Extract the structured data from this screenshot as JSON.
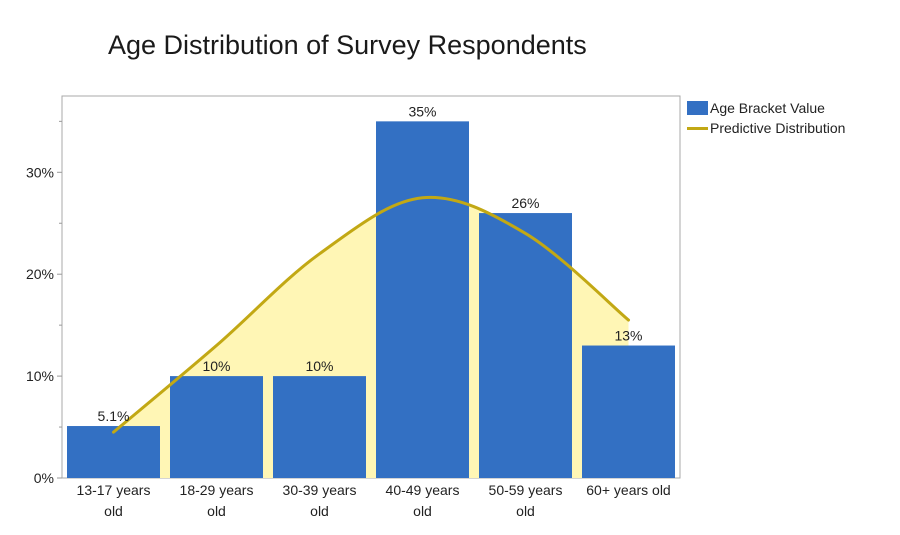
{
  "chart_data": {
    "type": "bar",
    "title": "Age Distribution of Survey Respondents",
    "categories": [
      "13-17 years old",
      "18-29 years old",
      "30-39 years old",
      "40-49 years old",
      "50-59 years old",
      "60+ years old"
    ],
    "category_label_lines": [
      [
        "13-17 years",
        "old"
      ],
      [
        "18-29 years",
        "old"
      ],
      [
        "30-39 years",
        "old"
      ],
      [
        "40-49 years",
        "old"
      ],
      [
        "50-59 years",
        "old"
      ],
      [
        "60+ years old"
      ]
    ],
    "series": [
      {
        "name": "Age Bracket Value",
        "type": "bar",
        "color": "#3370c3",
        "values": [
          5.1,
          10,
          10,
          35,
          26,
          13
        ],
        "labels": [
          "5.1%",
          "10%",
          "10%",
          "35%",
          "26%",
          "13%"
        ]
      },
      {
        "name": "Predictive Distribution",
        "type": "line",
        "color": "#c2a814",
        "fill_color": "#fff6b5",
        "values": [
          4.5,
          13.0,
          22.0,
          27.5,
          24.0,
          15.5
        ]
      }
    ],
    "yticks": [
      "0%",
      "10%",
      "20%",
      "30%"
    ],
    "ylim": [
      0,
      37.5
    ],
    "xlabel": "",
    "ylabel": "",
    "grid": false,
    "legend_position": "right"
  }
}
